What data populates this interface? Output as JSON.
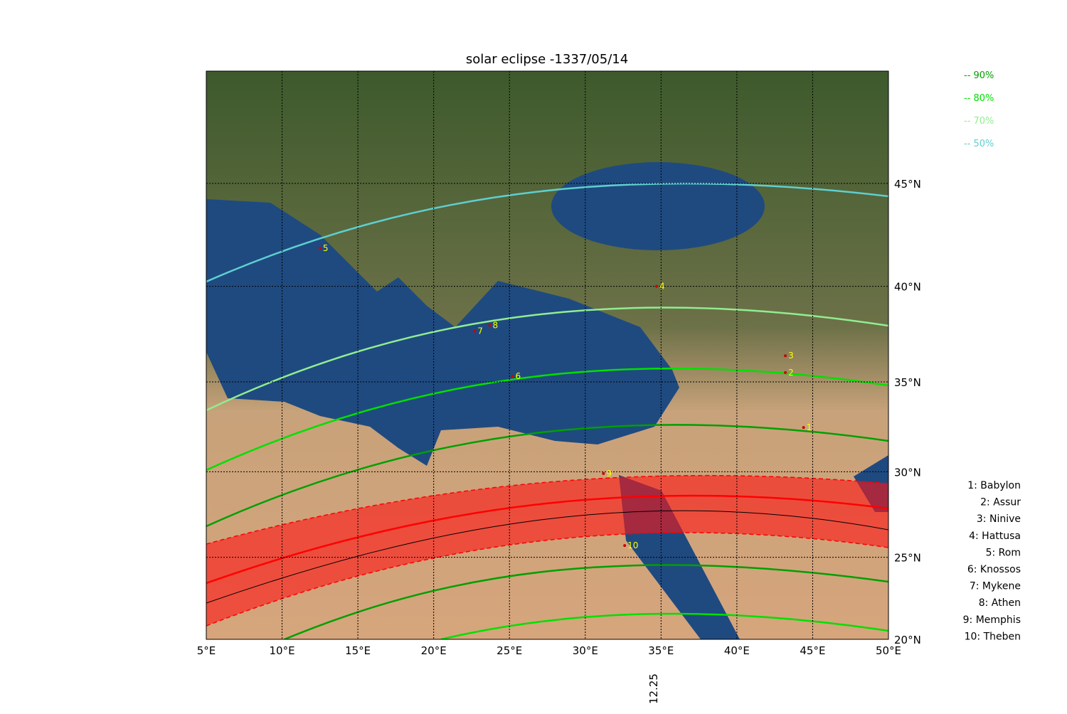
{
  "title": "solar eclipse -1337/05/14",
  "projection": "mercator",
  "xlim": [
    5,
    50
  ],
  "ylim": [
    20,
    50
  ],
  "xticks": [
    {
      "value": 5,
      "label": "5°E"
    },
    {
      "value": 10,
      "label": "10°E"
    },
    {
      "value": 15,
      "label": "15°E"
    },
    {
      "value": 20,
      "label": "20°E"
    },
    {
      "value": 25,
      "label": "25°E"
    },
    {
      "value": 30,
      "label": "30°E"
    },
    {
      "value": 35,
      "label": "35°E"
    },
    {
      "value": 40,
      "label": "40°E"
    },
    {
      "value": 45,
      "label": "45°E"
    },
    {
      "value": 50,
      "label": "50°E"
    }
  ],
  "yticks": [
    {
      "value": 20,
      "label": "20°N"
    },
    {
      "value": 25,
      "label": "25°N"
    },
    {
      "value": 30,
      "label": "30°N"
    },
    {
      "value": 35,
      "label": "35°N"
    },
    {
      "value": 40,
      "label": "40°N"
    },
    {
      "value": 45,
      "label": "45°N"
    }
  ],
  "grid": true,
  "legend": [
    {
      "label": "-- 90%",
      "color": "#00a000"
    },
    {
      "label": "-- 80%",
      "color": "#00e000"
    },
    {
      "label": "-- 70%",
      "color": "#90ee90"
    },
    {
      "label": "-- 50%",
      "color": "#5ecfd0"
    }
  ],
  "places": [
    {
      "id": 1,
      "name": "1: Babylon",
      "lon": 44.4,
      "lat": 32.5
    },
    {
      "id": 2,
      "name": "2: Assur",
      "lon": 43.2,
      "lat": 35.5
    },
    {
      "id": 3,
      "name": "3: Ninive",
      "lon": 43.2,
      "lat": 36.4
    },
    {
      "id": 4,
      "name": "4: Hattusa",
      "lon": 34.7,
      "lat": 40.0
    },
    {
      "id": 5,
      "name": "5: Rom",
      "lon": 12.5,
      "lat": 41.9
    },
    {
      "id": 6,
      "name": "6: Knossos",
      "lon": 25.2,
      "lat": 35.3
    },
    {
      "id": 7,
      "name": "7: Mykene",
      "lon": 22.7,
      "lat": 37.7
    },
    {
      "id": 8,
      "name": "8: Athen",
      "lon": 23.7,
      "lat": 38.0
    },
    {
      "id": 9,
      "name": "9: Memphis",
      "lon": 31.2,
      "lat": 29.9
    },
    {
      "id": 10,
      "name": "10: Theben",
      "lon": 32.6,
      "lat": 25.7
    }
  ],
  "bottom_label": "12.25"
}
